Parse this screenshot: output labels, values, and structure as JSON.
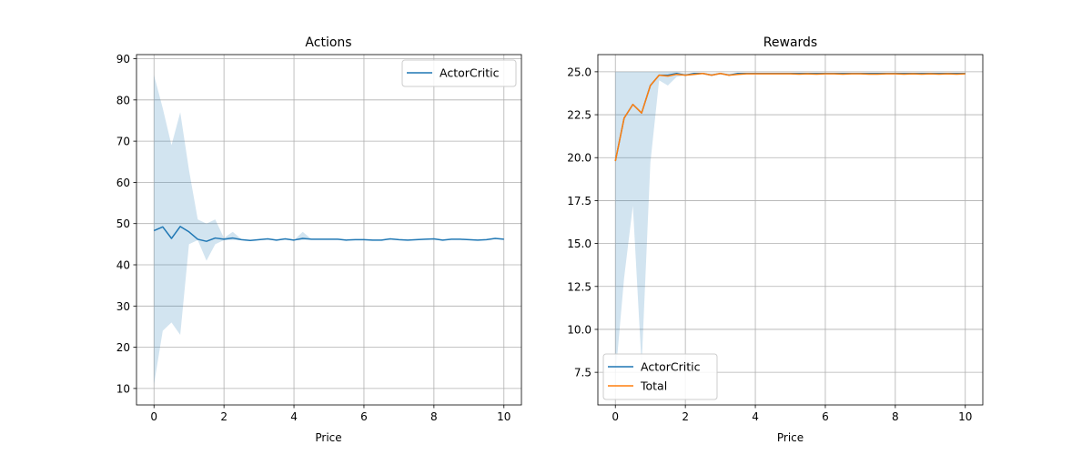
{
  "chart_data": [
    {
      "type": "line",
      "title": "Actions",
      "xlabel": "Price",
      "ylabel": "",
      "xlim": [
        -0.5,
        10.5
      ],
      "ylim": [
        6,
        91
      ],
      "xticks": [
        0,
        2,
        4,
        6,
        8,
        10
      ],
      "yticks": [
        10,
        20,
        30,
        40,
        50,
        60,
        70,
        80,
        90
      ],
      "grid": true,
      "legend_position": "top-right",
      "x": [
        0,
        0.25,
        0.5,
        0.75,
        1.0,
        1.25,
        1.5,
        1.75,
        2.0,
        2.25,
        2.5,
        2.75,
        3.0,
        3.25,
        3.5,
        3.75,
        4.0,
        4.25,
        4.5,
        4.75,
        5.0,
        5.25,
        5.5,
        5.75,
        6.0,
        6.25,
        6.5,
        6.75,
        7.0,
        7.25,
        7.5,
        7.75,
        8.0,
        8.25,
        8.5,
        8.75,
        9.0,
        9.25,
        9.5,
        9.75,
        10.0
      ],
      "series": [
        {
          "name": "ActorCritic",
          "color": "#1f77b4",
          "values": [
            48.3,
            49.2,
            46.4,
            49.3,
            48.0,
            46.2,
            45.7,
            46.5,
            46.2,
            46.5,
            46.1,
            45.9,
            46.1,
            46.3,
            46.0,
            46.3,
            46.0,
            46.4,
            46.2,
            46.2,
            46.2,
            46.2,
            46.0,
            46.1,
            46.1,
            46.0,
            46.0,
            46.3,
            46.1,
            46.0,
            46.1,
            46.2,
            46.3,
            46.0,
            46.2,
            46.2,
            46.1,
            46.0,
            46.1,
            46.4,
            46.2
          ],
          "band_lower": [
            11.0,
            24.0,
            26.0,
            23.0,
            45.0,
            46.0,
            41.0,
            45.0,
            46.0,
            46.0,
            46.0,
            45.9,
            46.1,
            46.3,
            46.0,
            46.3,
            46.0,
            46.0,
            46.2,
            46.2,
            46.2,
            46.2,
            46.0,
            46.1,
            46.1,
            46.0,
            46.0,
            46.3,
            46.1,
            46.0,
            46.1,
            46.2,
            46.3,
            46.0,
            46.2,
            46.2,
            46.1,
            46.0,
            46.1,
            46.4,
            46.2
          ],
          "band_upper": [
            86.0,
            78.0,
            69.0,
            77.0,
            63.0,
            51.0,
            50.0,
            51.0,
            46.5,
            48.0,
            46.2,
            45.9,
            46.1,
            46.3,
            46.0,
            46.3,
            46.0,
            48.0,
            46.2,
            46.2,
            46.2,
            46.2,
            46.0,
            46.1,
            46.1,
            46.0,
            46.0,
            46.3,
            46.1,
            46.0,
            46.1,
            46.2,
            46.3,
            46.0,
            46.2,
            46.2,
            46.1,
            46.0,
            46.1,
            46.4,
            46.2
          ]
        }
      ]
    },
    {
      "type": "line",
      "title": "Rewards",
      "xlabel": "Price",
      "ylabel": "",
      "xlim": [
        -0.5,
        10.5
      ],
      "ylim": [
        5.6,
        26.0
      ],
      "xticks": [
        0,
        2,
        4,
        6,
        8,
        10
      ],
      "yticks": [
        "7.5",
        "10.0",
        "12.5",
        "15.0",
        "17.5",
        "20.0",
        "22.5",
        "25.0"
      ],
      "grid": true,
      "legend_position": "bottom-left",
      "x": [
        0,
        0.25,
        0.5,
        0.75,
        1.0,
        1.25,
        1.5,
        1.75,
        2.0,
        2.25,
        2.5,
        2.75,
        3.0,
        3.25,
        3.5,
        3.75,
        4.0,
        4.25,
        4.5,
        4.75,
        5.0,
        5.25,
        5.5,
        5.75,
        6.0,
        6.25,
        6.5,
        6.75,
        7.0,
        7.25,
        7.5,
        7.75,
        8.0,
        8.25,
        8.5,
        8.75,
        9.0,
        9.25,
        9.5,
        9.75,
        10.0
      ],
      "series": [
        {
          "name": "ActorCritic",
          "color": "#1f77b4",
          "values": [
            19.8,
            22.3,
            23.1,
            22.6,
            24.2,
            24.8,
            24.8,
            24.9,
            24.8,
            24.9,
            24.9,
            24.8,
            24.9,
            24.8,
            24.9,
            24.9,
            24.9,
            24.9,
            24.9,
            24.9,
            24.9,
            24.9,
            24.9,
            24.9,
            24.9,
            24.9,
            24.9,
            24.9,
            24.9,
            24.9,
            24.9,
            24.9,
            24.9,
            24.9,
            24.9,
            24.9,
            24.9,
            24.9,
            24.9,
            24.9,
            24.9
          ],
          "band_lower": [
            7.2,
            13.0,
            17.2,
            7.9,
            19.7,
            24.5,
            24.2,
            24.7,
            24.8,
            24.9,
            24.9,
            24.8,
            24.9,
            24.8,
            24.9,
            24.9,
            24.9,
            24.9,
            24.9,
            24.9,
            24.9,
            24.9,
            24.9,
            24.9,
            24.9,
            24.9,
            24.9,
            24.9,
            24.9,
            24.9,
            24.9,
            24.9,
            24.9,
            24.9,
            24.9,
            24.9,
            24.9,
            24.9,
            24.9,
            24.9,
            24.9
          ],
          "band_upper": [
            25.0,
            25.0,
            25.0,
            25.0,
            25.0,
            25.0,
            25.0,
            25.0,
            24.9,
            24.95,
            24.95,
            24.9,
            24.95,
            24.9,
            24.95,
            24.95,
            24.95,
            24.95,
            24.95,
            24.95,
            24.95,
            24.95,
            24.95,
            24.95,
            24.95,
            24.95,
            24.95,
            24.95,
            24.95,
            24.95,
            24.95,
            24.95,
            24.95,
            24.95,
            24.95,
            24.95,
            24.95,
            24.95,
            24.95,
            24.95,
            24.95
          ]
        },
        {
          "name": "Total",
          "color": "#ff7f0e",
          "values": [
            19.8,
            22.3,
            23.1,
            22.6,
            24.2,
            24.8,
            24.75,
            24.85,
            24.8,
            24.85,
            24.9,
            24.8,
            24.9,
            24.8,
            24.85,
            24.88,
            24.88,
            24.88,
            24.88,
            24.88,
            24.88,
            24.86,
            24.88,
            24.86,
            24.88,
            24.88,
            24.86,
            24.88,
            24.88,
            24.86,
            24.86,
            24.88,
            24.88,
            24.86,
            24.88,
            24.86,
            24.88,
            24.86,
            24.88,
            24.86,
            24.88
          ]
        }
      ]
    }
  ]
}
